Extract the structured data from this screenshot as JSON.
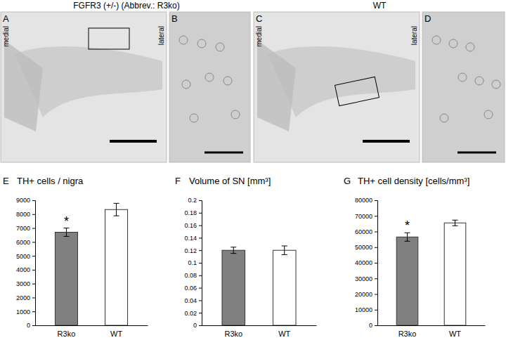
{
  "figure": {
    "headers": [
      "FGFR3 (+/-) (Abbrev.: R3ko)",
      "WT"
    ],
    "panels": [
      {
        "letter": "A",
        "labels": [
          "medial",
          "lateral"
        ]
      },
      {
        "letter": "B",
        "labels": []
      },
      {
        "letter": "C",
        "labels": [
          "medial",
          "lateral"
        ]
      },
      {
        "letter": "D",
        "labels": []
      }
    ]
  },
  "chart_data": [
    {
      "type": "bar",
      "panel": "E",
      "title": "TH+ cells / nigra",
      "categories": [
        "R3ko",
        "WT"
      ],
      "values": [
        6700,
        8330
      ],
      "errors": [
        300,
        450
      ],
      "colors": [
        "#808080",
        "#ffffff"
      ],
      "ylim": [
        0,
        9000
      ],
      "yticks": [
        0,
        1000,
        2000,
        3000,
        4000,
        5000,
        6000,
        7000,
        8000,
        9000
      ],
      "annotations": [
        {
          "text": "*",
          "category": "R3ko"
        }
      ]
    },
    {
      "type": "bar",
      "panel": "F",
      "title": "Volume of SN [mm³]",
      "categories": [
        "R3ko",
        "WT"
      ],
      "values": [
        0.12,
        0.12
      ],
      "errors": [
        0.005,
        0.007
      ],
      "colors": [
        "#808080",
        "#ffffff"
      ],
      "ylim": [
        0,
        0.2
      ],
      "yticks": [
        0,
        0.02,
        0.04,
        0.06,
        0.08,
        0.1,
        0.12,
        0.14,
        0.16,
        0.18,
        0.2
      ],
      "annotations": []
    },
    {
      "type": "bar",
      "panel": "G",
      "title": "TH+ cell density [cells/mm³]",
      "categories": [
        "R3ko",
        "WT"
      ],
      "values": [
        56500,
        65500
      ],
      "errors": [
        2700,
        1800
      ],
      "colors": [
        "#808080",
        "#ffffff"
      ],
      "ylim": [
        0,
        80000
      ],
      "yticks": [
        0,
        10000,
        20000,
        30000,
        40000,
        50000,
        60000,
        70000,
        80000
      ],
      "annotations": [
        {
          "text": "*",
          "category": "R3ko"
        }
      ]
    }
  ]
}
